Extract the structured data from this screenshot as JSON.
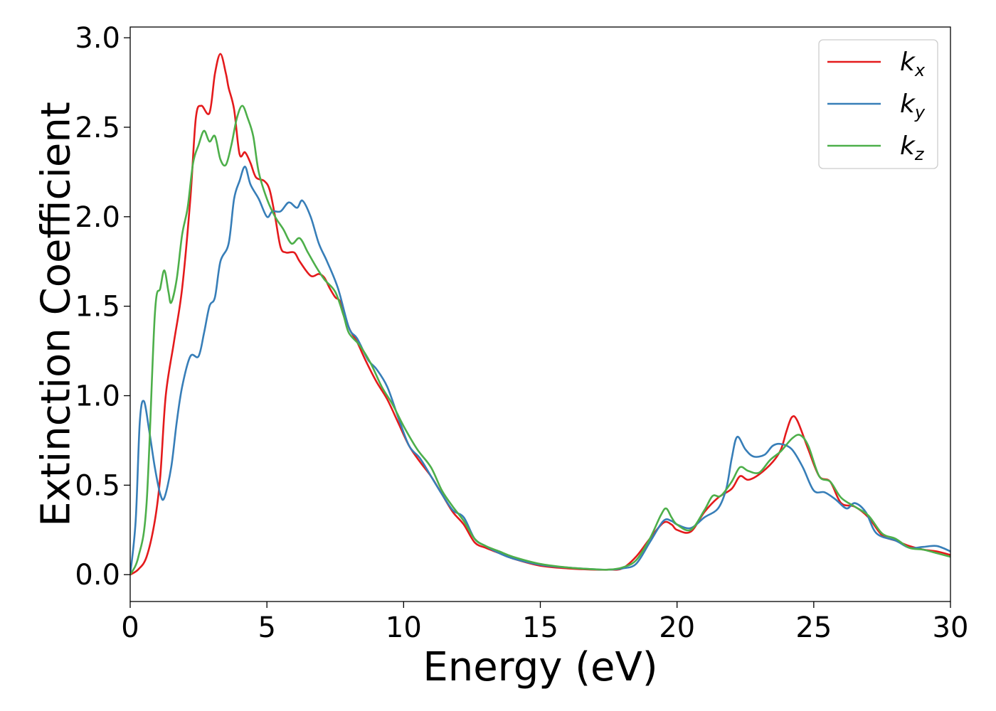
{
  "chart_data": {
    "type": "line",
    "title": "",
    "xlabel": "Energy (eV)",
    "ylabel": "Extinction Coefficient",
    "xlim": [
      0,
      30
    ],
    "ylim": [
      -0.15,
      3.06
    ],
    "xticks": [
      0,
      5,
      10,
      15,
      20,
      25,
      30
    ],
    "xtick_labels": [
      "0",
      "5",
      "10",
      "15",
      "20",
      "25",
      "30"
    ],
    "yticks": [
      0.0,
      0.5,
      1.0,
      1.5,
      2.0,
      2.5,
      3.0
    ],
    "ytick_labels": [
      "0.0",
      "0.5",
      "1.0",
      "1.5",
      "2.0",
      "2.5",
      "3.0"
    ],
    "grid": false,
    "legend_position": "top-right",
    "series": [
      {
        "name": "k",
        "subscript": "x",
        "color": "#e41a1c",
        "points": [
          [
            0,
            0
          ],
          [
            0.3,
            0.03
          ],
          [
            0.6,
            0.1
          ],
          [
            0.9,
            0.3
          ],
          [
            1.1,
            0.55
          ],
          [
            1.3,
            1.0
          ],
          [
            1.6,
            1.3
          ],
          [
            1.9,
            1.6
          ],
          [
            2.2,
            2.1
          ],
          [
            2.4,
            2.55
          ],
          [
            2.6,
            2.62
          ],
          [
            2.9,
            2.58
          ],
          [
            3.1,
            2.8
          ],
          [
            3.3,
            2.91
          ],
          [
            3.5,
            2.8
          ],
          [
            3.6,
            2.72
          ],
          [
            3.8,
            2.6
          ],
          [
            4.0,
            2.35
          ],
          [
            4.2,
            2.36
          ],
          [
            4.4,
            2.3
          ],
          [
            4.6,
            2.22
          ],
          [
            4.9,
            2.2
          ],
          [
            5.1,
            2.15
          ],
          [
            5.3,
            2.0
          ],
          [
            5.5,
            1.83
          ],
          [
            5.7,
            1.8
          ],
          [
            6.0,
            1.8
          ],
          [
            6.2,
            1.75
          ],
          [
            6.6,
            1.67
          ],
          [
            6.9,
            1.68
          ],
          [
            7.1,
            1.66
          ],
          [
            7.3,
            1.6
          ],
          [
            7.5,
            1.55
          ],
          [
            7.7,
            1.52
          ],
          [
            8.0,
            1.38
          ],
          [
            8.3,
            1.3
          ],
          [
            8.6,
            1.2
          ],
          [
            9.0,
            1.08
          ],
          [
            9.4,
            0.98
          ],
          [
            9.8,
            0.85
          ],
          [
            10.2,
            0.72
          ],
          [
            10.6,
            0.63
          ],
          [
            11.0,
            0.55
          ],
          [
            11.4,
            0.45
          ],
          [
            11.8,
            0.35
          ],
          [
            12.2,
            0.28
          ],
          [
            12.6,
            0.18
          ],
          [
            13.0,
            0.15
          ],
          [
            13.5,
            0.12
          ],
          [
            14.0,
            0.09
          ],
          [
            15.0,
            0.05
          ],
          [
            16.0,
            0.035
          ],
          [
            17.0,
            0.028
          ],
          [
            17.5,
            0.028
          ],
          [
            18.0,
            0.035
          ],
          [
            18.5,
            0.1
          ],
          [
            19.0,
            0.2
          ],
          [
            19.5,
            0.29
          ],
          [
            19.8,
            0.28
          ],
          [
            20.0,
            0.25
          ],
          [
            20.5,
            0.24
          ],
          [
            21.0,
            0.35
          ],
          [
            21.5,
            0.43
          ],
          [
            22.0,
            0.48
          ],
          [
            22.3,
            0.55
          ],
          [
            22.6,
            0.53
          ],
          [
            23.0,
            0.56
          ],
          [
            23.5,
            0.63
          ],
          [
            23.8,
            0.7
          ],
          [
            24.0,
            0.8
          ],
          [
            24.2,
            0.88
          ],
          [
            24.4,
            0.86
          ],
          [
            24.8,
            0.7
          ],
          [
            25.2,
            0.55
          ],
          [
            25.6,
            0.52
          ],
          [
            26.0,
            0.4
          ],
          [
            26.5,
            0.38
          ],
          [
            27.0,
            0.32
          ],
          [
            27.5,
            0.22
          ],
          [
            28.0,
            0.19
          ],
          [
            28.5,
            0.16
          ],
          [
            29.0,
            0.14
          ],
          [
            29.5,
            0.13
          ],
          [
            30.0,
            0.11
          ]
        ]
      },
      {
        "name": "k",
        "subscript": "y",
        "color": "#377eb8",
        "points": [
          [
            0,
            0
          ],
          [
            0.2,
            0.3
          ],
          [
            0.35,
            0.85
          ],
          [
            0.5,
            0.97
          ],
          [
            0.7,
            0.8
          ],
          [
            0.9,
            0.6
          ],
          [
            1.1,
            0.45
          ],
          [
            1.25,
            0.43
          ],
          [
            1.5,
            0.6
          ],
          [
            1.7,
            0.85
          ],
          [
            1.9,
            1.05
          ],
          [
            2.2,
            1.22
          ],
          [
            2.5,
            1.22
          ],
          [
            2.7,
            1.35
          ],
          [
            2.9,
            1.5
          ],
          [
            3.1,
            1.55
          ],
          [
            3.3,
            1.75
          ],
          [
            3.6,
            1.85
          ],
          [
            3.8,
            2.1
          ],
          [
            4.0,
            2.2
          ],
          [
            4.2,
            2.28
          ],
          [
            4.4,
            2.18
          ],
          [
            4.7,
            2.1
          ],
          [
            5.0,
            2.0
          ],
          [
            5.2,
            2.03
          ],
          [
            5.5,
            2.03
          ],
          [
            5.8,
            2.08
          ],
          [
            6.1,
            2.05
          ],
          [
            6.3,
            2.09
          ],
          [
            6.6,
            2.0
          ],
          [
            6.9,
            1.85
          ],
          [
            7.2,
            1.75
          ],
          [
            7.6,
            1.6
          ],
          [
            8.0,
            1.38
          ],
          [
            8.3,
            1.32
          ],
          [
            8.7,
            1.2
          ],
          [
            9.0,
            1.15
          ],
          [
            9.4,
            1.05
          ],
          [
            9.8,
            0.88
          ],
          [
            10.2,
            0.72
          ],
          [
            10.6,
            0.65
          ],
          [
            11.0,
            0.55
          ],
          [
            11.4,
            0.45
          ],
          [
            11.8,
            0.36
          ],
          [
            12.2,
            0.32
          ],
          [
            12.6,
            0.2
          ],
          [
            13.0,
            0.16
          ],
          [
            13.5,
            0.12
          ],
          [
            14.0,
            0.09
          ],
          [
            15.0,
            0.055
          ],
          [
            16.0,
            0.04
          ],
          [
            17.0,
            0.03
          ],
          [
            17.5,
            0.028
          ],
          [
            18.0,
            0.035
          ],
          [
            18.5,
            0.06
          ],
          [
            19.0,
            0.18
          ],
          [
            19.5,
            0.3
          ],
          [
            19.8,
            0.3
          ],
          [
            20.0,
            0.28
          ],
          [
            20.5,
            0.26
          ],
          [
            21.0,
            0.32
          ],
          [
            21.5,
            0.37
          ],
          [
            21.8,
            0.48
          ],
          [
            22.0,
            0.65
          ],
          [
            22.2,
            0.77
          ],
          [
            22.5,
            0.7
          ],
          [
            22.8,
            0.66
          ],
          [
            23.2,
            0.67
          ],
          [
            23.5,
            0.72
          ],
          [
            23.8,
            0.73
          ],
          [
            24.2,
            0.7
          ],
          [
            24.6,
            0.6
          ],
          [
            25.0,
            0.47
          ],
          [
            25.4,
            0.46
          ],
          [
            25.8,
            0.42
          ],
          [
            26.2,
            0.37
          ],
          [
            26.5,
            0.4
          ],
          [
            26.9,
            0.35
          ],
          [
            27.3,
            0.23
          ],
          [
            28.0,
            0.19
          ],
          [
            28.5,
            0.15
          ],
          [
            29.0,
            0.155
          ],
          [
            29.5,
            0.16
          ],
          [
            30.0,
            0.13
          ]
        ]
      },
      {
        "name": "k",
        "subscript": "z",
        "color": "#4daf4a",
        "points": [
          [
            0,
            0
          ],
          [
            0.3,
            0.1
          ],
          [
            0.6,
            0.4
          ],
          [
            0.9,
            1.45
          ],
          [
            1.1,
            1.6
          ],
          [
            1.25,
            1.7
          ],
          [
            1.4,
            1.58
          ],
          [
            1.5,
            1.52
          ],
          [
            1.7,
            1.65
          ],
          [
            1.9,
            1.9
          ],
          [
            2.1,
            2.05
          ],
          [
            2.3,
            2.3
          ],
          [
            2.5,
            2.4
          ],
          [
            2.7,
            2.48
          ],
          [
            2.9,
            2.42
          ],
          [
            3.1,
            2.45
          ],
          [
            3.3,
            2.32
          ],
          [
            3.5,
            2.29
          ],
          [
            3.7,
            2.4
          ],
          [
            3.9,
            2.55
          ],
          [
            4.1,
            2.62
          ],
          [
            4.3,
            2.55
          ],
          [
            4.5,
            2.45
          ],
          [
            4.7,
            2.25
          ],
          [
            5.0,
            2.1
          ],
          [
            5.3,
            2.0
          ],
          [
            5.6,
            1.93
          ],
          [
            5.9,
            1.85
          ],
          [
            6.2,
            1.88
          ],
          [
            6.5,
            1.8
          ],
          [
            6.8,
            1.72
          ],
          [
            7.1,
            1.65
          ],
          [
            7.5,
            1.58
          ],
          [
            7.8,
            1.45
          ],
          [
            8.0,
            1.35
          ],
          [
            8.4,
            1.28
          ],
          [
            8.8,
            1.18
          ],
          [
            9.2,
            1.05
          ],
          [
            9.6,
            0.95
          ],
          [
            10.0,
            0.83
          ],
          [
            10.5,
            0.7
          ],
          [
            11.0,
            0.6
          ],
          [
            11.4,
            0.47
          ],
          [
            11.8,
            0.38
          ],
          [
            12.2,
            0.3
          ],
          [
            12.6,
            0.2
          ],
          [
            13.0,
            0.16
          ],
          [
            13.5,
            0.13
          ],
          [
            14.0,
            0.1
          ],
          [
            15.0,
            0.06
          ],
          [
            16.0,
            0.04
          ],
          [
            17.0,
            0.03
          ],
          [
            17.5,
            0.028
          ],
          [
            18.0,
            0.04
          ],
          [
            18.5,
            0.08
          ],
          [
            19.0,
            0.2
          ],
          [
            19.4,
            0.33
          ],
          [
            19.6,
            0.37
          ],
          [
            19.8,
            0.32
          ],
          [
            20.0,
            0.28
          ],
          [
            20.5,
            0.25
          ],
          [
            21.0,
            0.36
          ],
          [
            21.3,
            0.44
          ],
          [
            21.6,
            0.44
          ],
          [
            22.0,
            0.52
          ],
          [
            22.3,
            0.6
          ],
          [
            22.6,
            0.58
          ],
          [
            23.0,
            0.57
          ],
          [
            23.4,
            0.64
          ],
          [
            23.8,
            0.69
          ],
          [
            24.2,
            0.76
          ],
          [
            24.5,
            0.78
          ],
          [
            24.8,
            0.72
          ],
          [
            25.2,
            0.55
          ],
          [
            25.6,
            0.52
          ],
          [
            26.0,
            0.43
          ],
          [
            26.5,
            0.38
          ],
          [
            27.0,
            0.33
          ],
          [
            27.5,
            0.23
          ],
          [
            28.0,
            0.2
          ],
          [
            28.5,
            0.15
          ],
          [
            29.0,
            0.14
          ],
          [
            29.5,
            0.12
          ],
          [
            30.0,
            0.1
          ]
        ]
      }
    ]
  }
}
